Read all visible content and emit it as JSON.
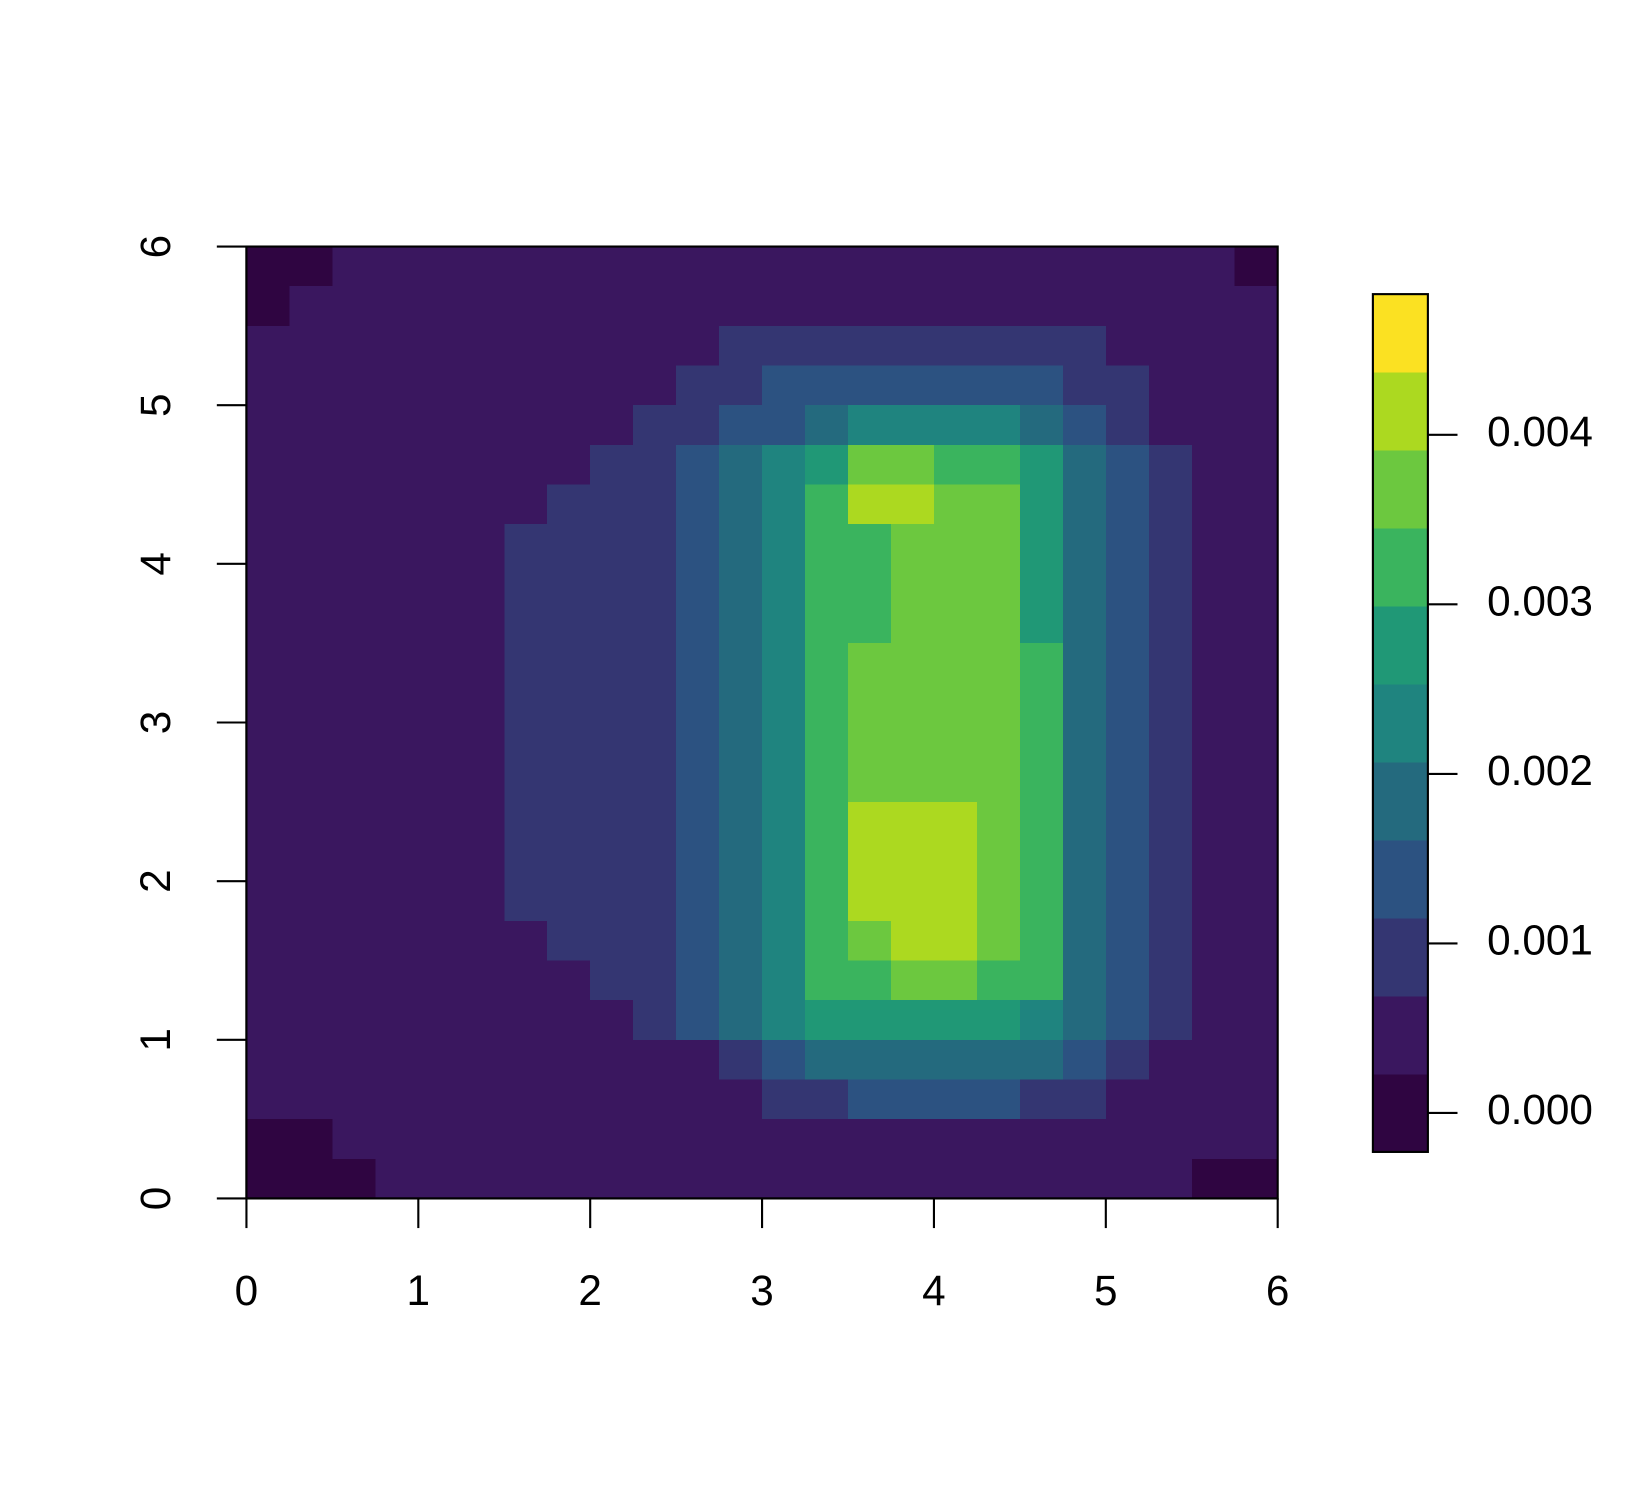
{
  "chart_data": {
    "type": "heatmap",
    "xlim": [
      0,
      6
    ],
    "ylim": [
      0,
      6
    ],
    "xticks": [
      0,
      1,
      2,
      3,
      4,
      5,
      6
    ],
    "yticks": [
      0,
      1,
      2,
      3,
      4,
      5,
      6
    ],
    "x": [
      0.125,
      0.375,
      0.625,
      0.875,
      1.125,
      1.375,
      1.625,
      1.875,
      2.125,
      2.375,
      2.625,
      2.875,
      3.125,
      3.375,
      3.625,
      3.875,
      4.125,
      4.375,
      4.625,
      4.875,
      5.125,
      5.375,
      5.625,
      5.875
    ],
    "y": [
      5.875,
      5.625,
      5.375,
      5.125,
      4.875,
      4.625,
      4.375,
      4.125,
      3.875,
      3.625,
      3.375,
      3.125,
      2.875,
      2.625,
      2.375,
      2.125,
      1.875,
      1.625,
      1.375,
      1.125,
      0.875,
      0.625,
      0.375,
      0.125
    ],
    "z": [
      [
        0,
        0,
        0.0005,
        0.0005,
        0.0005,
        0.0005,
        0.0005,
        0.0005,
        0.0005,
        0.0005,
        0.0005,
        0.0005,
        0.0005,
        0.0005,
        0.0005,
        0.0005,
        0.0005,
        0.0005,
        0.0005,
        0.0005,
        0.0005,
        0.0005,
        0.0005,
        0
      ],
      [
        0,
        0.0005,
        0.0005,
        0.0005,
        0.0005,
        0.0005,
        0.0005,
        0.0005,
        0.0005,
        0.0005,
        0.0005,
        0.0005,
        0.0005,
        0.0005,
        0.0005,
        0.0005,
        0.0005,
        0.0005,
        0.0005,
        0.0005,
        0.0005,
        0.0005,
        0.0005,
        0.0005
      ],
      [
        0.0005,
        0.0005,
        0.0005,
        0.0005,
        0.0005,
        0.0005,
        0.0005,
        0.0005,
        0.0005,
        0.0005,
        0.0005,
        0.0009,
        0.0009,
        0.0009,
        0.0009,
        0.0009,
        0.0009,
        0.0009,
        0.0009,
        0.0009,
        0.0005,
        0.0005,
        0.0005,
        0.0005
      ],
      [
        0.0005,
        0.0005,
        0.0005,
        0.0005,
        0.0005,
        0.0005,
        0.0005,
        0.0005,
        0.0005,
        0.0005,
        0.0009,
        0.0009,
        0.0014,
        0.0014,
        0.0014,
        0.0014,
        0.0014,
        0.0014,
        0.0014,
        0.0009,
        0.0009,
        0.0005,
        0.0005,
        0.0005
      ],
      [
        0.0005,
        0.0005,
        0.0005,
        0.0005,
        0.0005,
        0.0005,
        0.0005,
        0.0005,
        0.0005,
        0.0009,
        0.0009,
        0.0014,
        0.0014,
        0.0018,
        0.0023,
        0.0023,
        0.0023,
        0.0023,
        0.0018,
        0.0014,
        0.0009,
        0.0005,
        0.0005,
        0.0005
      ],
      [
        0.0005,
        0.0005,
        0.0005,
        0.0005,
        0.0005,
        0.0005,
        0.0005,
        0.0005,
        0.0009,
        0.0009,
        0.0014,
        0.0018,
        0.0023,
        0.0028,
        0.0037,
        0.0037,
        0.0032,
        0.0032,
        0.0028,
        0.0018,
        0.0014,
        0.0009,
        0.0005,
        0.0005
      ],
      [
        0.0005,
        0.0005,
        0.0005,
        0.0005,
        0.0005,
        0.0005,
        0.0005,
        0.0009,
        0.0009,
        0.0009,
        0.0014,
        0.0018,
        0.0023,
        0.0032,
        0.0041,
        0.0041,
        0.0037,
        0.0037,
        0.0028,
        0.0018,
        0.0014,
        0.0009,
        0.0005,
        0.0005
      ],
      [
        0.0005,
        0.0005,
        0.0005,
        0.0005,
        0.0005,
        0.0005,
        0.0009,
        0.0009,
        0.0009,
        0.0009,
        0.0014,
        0.0018,
        0.0023,
        0.0032,
        0.0032,
        0.0037,
        0.0037,
        0.0037,
        0.0028,
        0.0018,
        0.0014,
        0.0009,
        0.0005,
        0.0005
      ],
      [
        0.0005,
        0.0005,
        0.0005,
        0.0005,
        0.0005,
        0.0005,
        0.0009,
        0.0009,
        0.0009,
        0.0009,
        0.0014,
        0.0018,
        0.0023,
        0.0032,
        0.0032,
        0.0037,
        0.0037,
        0.0037,
        0.0028,
        0.0018,
        0.0014,
        0.0009,
        0.0005,
        0.0005
      ],
      [
        0.0005,
        0.0005,
        0.0005,
        0.0005,
        0.0005,
        0.0005,
        0.0009,
        0.0009,
        0.0009,
        0.0009,
        0.0014,
        0.0018,
        0.0023,
        0.0032,
        0.0032,
        0.0037,
        0.0037,
        0.0037,
        0.0028,
        0.0018,
        0.0014,
        0.0009,
        0.0005,
        0.0005
      ],
      [
        0.0005,
        0.0005,
        0.0005,
        0.0005,
        0.0005,
        0.0005,
        0.0009,
        0.0009,
        0.0009,
        0.0009,
        0.0014,
        0.0018,
        0.0023,
        0.0032,
        0.0037,
        0.0037,
        0.0037,
        0.0037,
        0.0032,
        0.0018,
        0.0014,
        0.0009,
        0.0005,
        0.0005
      ],
      [
        0.0005,
        0.0005,
        0.0005,
        0.0005,
        0.0005,
        0.0005,
        0.0009,
        0.0009,
        0.0009,
        0.0009,
        0.0014,
        0.0018,
        0.0023,
        0.0032,
        0.0037,
        0.0037,
        0.0037,
        0.0037,
        0.0032,
        0.0018,
        0.0014,
        0.0009,
        0.0005,
        0.0005
      ],
      [
        0.0005,
        0.0005,
        0.0005,
        0.0005,
        0.0005,
        0.0005,
        0.0009,
        0.0009,
        0.0009,
        0.0009,
        0.0014,
        0.0018,
        0.0023,
        0.0032,
        0.0037,
        0.0037,
        0.0037,
        0.0037,
        0.0032,
        0.0018,
        0.0014,
        0.0009,
        0.0005,
        0.0005
      ],
      [
        0.0005,
        0.0005,
        0.0005,
        0.0005,
        0.0005,
        0.0005,
        0.0009,
        0.0009,
        0.0009,
        0.0009,
        0.0014,
        0.0018,
        0.0023,
        0.0032,
        0.0037,
        0.0037,
        0.0037,
        0.0037,
        0.0032,
        0.0018,
        0.0014,
        0.0009,
        0.0005,
        0.0005
      ],
      [
        0.0005,
        0.0005,
        0.0005,
        0.0005,
        0.0005,
        0.0005,
        0.0009,
        0.0009,
        0.0009,
        0.0009,
        0.0014,
        0.0018,
        0.0023,
        0.0032,
        0.0041,
        0.0041,
        0.0041,
        0.0037,
        0.0032,
        0.0018,
        0.0014,
        0.0009,
        0.0005,
        0.0005
      ],
      [
        0.0005,
        0.0005,
        0.0005,
        0.0005,
        0.0005,
        0.0005,
        0.0009,
        0.0009,
        0.0009,
        0.0009,
        0.0014,
        0.0018,
        0.0023,
        0.0032,
        0.0041,
        0.0041,
        0.0041,
        0.0037,
        0.0032,
        0.0018,
        0.0014,
        0.0009,
        0.0005,
        0.0005
      ],
      [
        0.0005,
        0.0005,
        0.0005,
        0.0005,
        0.0005,
        0.0005,
        0.0009,
        0.0009,
        0.0009,
        0.0009,
        0.0014,
        0.0018,
        0.0023,
        0.0032,
        0.0041,
        0.0041,
        0.0041,
        0.0037,
        0.0032,
        0.0018,
        0.0014,
        0.0009,
        0.0005,
        0.0005
      ],
      [
        0.0005,
        0.0005,
        0.0005,
        0.0005,
        0.0005,
        0.0005,
        0.0005,
        0.0009,
        0.0009,
        0.0009,
        0.0014,
        0.0018,
        0.0023,
        0.0032,
        0.0037,
        0.0041,
        0.0041,
        0.0037,
        0.0032,
        0.0018,
        0.0014,
        0.0009,
        0.0005,
        0.0005
      ],
      [
        0.0005,
        0.0005,
        0.0005,
        0.0005,
        0.0005,
        0.0005,
        0.0005,
        0.0005,
        0.0009,
        0.0009,
        0.0014,
        0.0018,
        0.0023,
        0.0032,
        0.0032,
        0.0037,
        0.0037,
        0.0032,
        0.0032,
        0.0018,
        0.0014,
        0.0009,
        0.0005,
        0.0005
      ],
      [
        0.0005,
        0.0005,
        0.0005,
        0.0005,
        0.0005,
        0.0005,
        0.0005,
        0.0005,
        0.0005,
        0.0009,
        0.0014,
        0.0018,
        0.0023,
        0.0028,
        0.0028,
        0.0028,
        0.0028,
        0.0028,
        0.0023,
        0.0018,
        0.0014,
        0.0009,
        0.0005,
        0.0005
      ],
      [
        0.0005,
        0.0005,
        0.0005,
        0.0005,
        0.0005,
        0.0005,
        0.0005,
        0.0005,
        0.0005,
        0.0005,
        0.0005,
        0.0009,
        0.0014,
        0.0018,
        0.0018,
        0.0018,
        0.0018,
        0.0018,
        0.0018,
        0.0014,
        0.0009,
        0.0005,
        0.0005,
        0.0005
      ],
      [
        0.0005,
        0.0005,
        0.0005,
        0.0005,
        0.0005,
        0.0005,
        0.0005,
        0.0005,
        0.0005,
        0.0005,
        0.0005,
        0.0005,
        0.0009,
        0.0009,
        0.0014,
        0.0014,
        0.0014,
        0.0014,
        0.0009,
        0.0009,
        0.0005,
        0.0005,
        0.0005,
        0.0005
      ],
      [
        0,
        0,
        0.0005,
        0.0005,
        0.0005,
        0.0005,
        0.0005,
        0.0005,
        0.0005,
        0.0005,
        0.0005,
        0.0005,
        0.0005,
        0.0005,
        0.0005,
        0.0005,
        0.0005,
        0.0005,
        0.0005,
        0.0005,
        0.0005,
        0.0005,
        0.0005,
        0.0005
      ],
      [
        0,
        0,
        0,
        0.0005,
        0.0005,
        0.0005,
        0.0005,
        0.0005,
        0.0005,
        0.0005,
        0.0005,
        0.0005,
        0.0005,
        0.0005,
        0.0005,
        0.0005,
        0.0005,
        0.0005,
        0.0005,
        0.0005,
        0.0005,
        0.0005,
        0,
        0
      ]
    ],
    "zlim": [
      -0.00023,
      0.00483
    ],
    "colors": [
      "#2F0541",
      "#3A175F",
      "#343672",
      "#2C5281",
      "#246A7E",
      "#1F847F",
      "#209876",
      "#3AB45E",
      "#6CC83F",
      "#ACD920",
      "#FBE122"
    ],
    "colorbar_ticks": [
      {
        "value": 0,
        "label": "0.000"
      },
      0.001,
      0.002,
      0.003,
      0.004
    ]
  }
}
